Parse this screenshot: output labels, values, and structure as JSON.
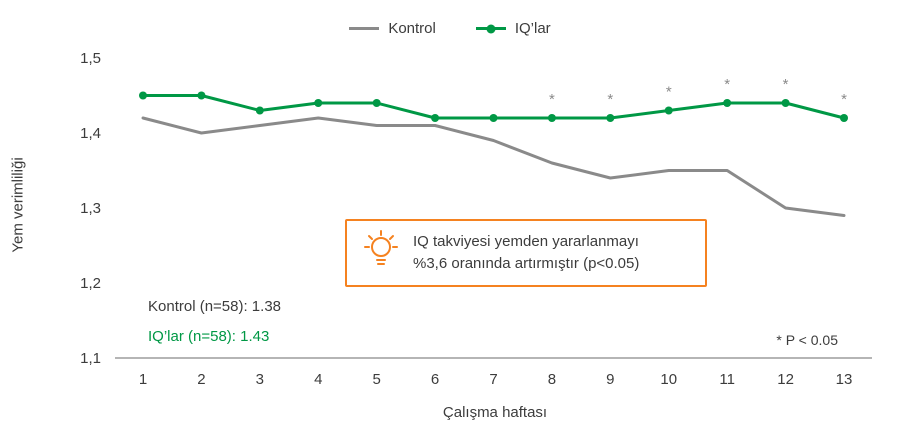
{
  "chart_data": {
    "type": "line",
    "x": [
      1,
      2,
      3,
      4,
      5,
      6,
      7,
      8,
      9,
      10,
      11,
      12,
      13
    ],
    "x_ticks": [
      "1",
      "2",
      "3",
      "4",
      "5",
      "6",
      "7",
      "8",
      "9",
      "10",
      "11",
      "12",
      "13"
    ],
    "y_ticks": [
      {
        "value": 1.1,
        "label": "1,1"
      },
      {
        "value": 1.2,
        "label": "1,2"
      },
      {
        "value": 1.3,
        "label": "1,3"
      },
      {
        "value": 1.4,
        "label": "1,4"
      },
      {
        "value": 1.5,
        "label": "1,5"
      }
    ],
    "ylim": [
      1.1,
      1.5
    ],
    "xlabel": "Çalışma haftası",
    "ylabel": "Yem verimliliği",
    "grid": false,
    "legend_position": "top-center",
    "series": [
      {
        "name": "Kontrol",
        "color": "#8a8a8a",
        "marker": false,
        "values": [
          1.42,
          1.4,
          1.41,
          1.42,
          1.41,
          1.41,
          1.39,
          1.36,
          1.34,
          1.35,
          1.35,
          1.3,
          1.29
        ]
      },
      {
        "name": "IQ’lar",
        "color": "#009845",
        "marker": true,
        "values": [
          1.45,
          1.45,
          1.43,
          1.44,
          1.44,
          1.42,
          1.42,
          1.42,
          1.42,
          1.43,
          1.44,
          1.44,
          1.42
        ]
      }
    ],
    "significant_weeks": [
      8,
      9,
      10,
      11,
      12,
      13
    ],
    "significance_marker": "*"
  },
  "annotation": {
    "line1": "IQ takviyesi yemden yararlanmayı",
    "line2": "%3,6 oranında artırmıştır (p<0.05)",
    "border_color": "#f58220",
    "icon": "lightbulb-icon"
  },
  "stats": {
    "kontrol": "Kontrol (n=58): 1.38",
    "iqlar": "IQ’lar (n=58): 1.43"
  },
  "note": "* P < 0.05",
  "colors": {
    "kontrol": "#8a8a8a",
    "iqlar": "#009845",
    "axis": "#b5b5b5",
    "text": "#3c3c3c",
    "accent": "#f58220"
  }
}
